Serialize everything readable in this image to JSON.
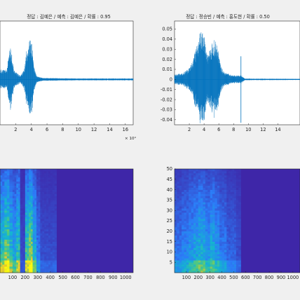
{
  "chart_data": [
    {
      "type": "line",
      "title": "정답 : 김예은 / 예측 : 김예은 / 확률 : 0.95",
      "xlim": [
        0,
        17
      ],
      "xticks": [
        2,
        4,
        6,
        8,
        10,
        12,
        14,
        16
      ],
      "xtick_labels": [
        "2",
        "4",
        "6",
        "8",
        "10",
        "12",
        "14",
        "16"
      ],
      "x_multiplier": "× 10⁴",
      "ylim": [
        -0.045,
        0.058
      ],
      "color": "#0072bd",
      "envelope": [
        {
          "x": 0.9,
          "a": 0.01
        },
        {
          "x": 1.2,
          "a": 0.03
        },
        {
          "x": 1.45,
          "a": 0.032
        },
        {
          "x": 1.75,
          "a": 0.01
        },
        {
          "x": 2.2,
          "a": 0.006
        },
        {
          "x": 2.6,
          "a": 0.004
        },
        {
          "x": 3.1,
          "a": 0.01
        },
        {
          "x": 3.4,
          "a": 0.03
        },
        {
          "x": 3.6,
          "a": 0.038
        },
        {
          "x": 3.85,
          "a": 0.04
        },
        {
          "x": 4.1,
          "a": 0.035
        },
        {
          "x": 4.35,
          "a": 0.012
        },
        {
          "x": 4.7,
          "a": 0.003
        },
        {
          "x": 5.5,
          "a": 0.0015
        },
        {
          "x": 8.0,
          "a": 0.0012
        },
        {
          "x": 10.0,
          "a": 0.001
        },
        {
          "x": 17.0,
          "a": 0.001
        }
      ]
    },
    {
      "type": "line",
      "title": "정답 : 정승빈 / 예측 : 홍도현 / 확률 : 0.50",
      "xlim": [
        0,
        17
      ],
      "xticks": [
        2,
        4,
        6,
        8,
        10,
        12,
        14
      ],
      "xtick_labels": [
        "2",
        "4",
        "6",
        "8",
        "10",
        "12",
        "14"
      ],
      "ylim": [
        -0.045,
        0.058
      ],
      "yticks": [
        -0.04,
        -0.03,
        -0.02,
        -0.01,
        0,
        0.01,
        0.02,
        0.03,
        0.04,
        0.05
      ],
      "ytick_labels": [
        "-0.04",
        "-0.03",
        "-0.02",
        "-0.01",
        "0",
        "0.01",
        "0.02",
        "0.03",
        "0.04",
        "0.05"
      ],
      "color": "#0072bd",
      "envelope": [
        {
          "x": 0.0,
          "a": 0.005
        },
        {
          "x": 1.0,
          "a": 0.006
        },
        {
          "x": 1.8,
          "a": 0.01
        },
        {
          "x": 2.5,
          "a": 0.02
        },
        {
          "x": 3.0,
          "a": 0.035
        },
        {
          "x": 3.4,
          "a": 0.045
        },
        {
          "x": 3.7,
          "a": 0.05
        },
        {
          "x": 4.0,
          "a": 0.045
        },
        {
          "x": 4.4,
          "a": 0.025
        },
        {
          "x": 4.8,
          "a": 0.03
        },
        {
          "x": 5.3,
          "a": 0.04
        },
        {
          "x": 5.8,
          "a": 0.035
        },
        {
          "x": 6.2,
          "a": 0.015
        },
        {
          "x": 6.6,
          "a": 0.008
        },
        {
          "x": 7.5,
          "a": 0.005
        },
        {
          "x": 8.5,
          "a": 0.004
        },
        {
          "x": 9.1,
          "a": 0.004
        },
        {
          "x": 9.5,
          "a": 0.0008
        },
        {
          "x": 17.0,
          "a": 0.0006
        }
      ],
      "spikes": [
        {
          "x": 9.0,
          "top": 0.023,
          "bottom": -0.043
        }
      ]
    },
    {
      "type": "heatmap",
      "xlim": [
        0,
        1060
      ],
      "xticks": [
        100,
        200,
        300,
        400,
        500,
        600,
        700,
        800,
        900,
        1000
      ],
      "xtick_labels": [
        "100",
        "200",
        "300",
        "400",
        "500",
        "600",
        "700",
        "800",
        "900",
        "1000"
      ],
      "ylim": [
        0,
        50
      ],
      "colormap": [
        "#3e26a8",
        "#2c7cf8",
        "#14b5d0",
        "#59cb76",
        "#e5c730",
        "#f9fb0e"
      ],
      "bands": [
        {
          "x0": 0,
          "x1": 35,
          "level": 0.5
        },
        {
          "x0": 35,
          "x1": 75,
          "level": 0.65
        },
        {
          "x0": 75,
          "x1": 100,
          "level": 0.45
        },
        {
          "x0": 100,
          "x1": 130,
          "level": 0.35
        },
        {
          "x0": 130,
          "x1": 160,
          "level": 0.5
        },
        {
          "x0": 160,
          "x1": 200,
          "level": 0.08
        },
        {
          "x0": 200,
          "x1": 230,
          "level": 0.55
        },
        {
          "x0": 230,
          "x1": 260,
          "level": 0.7
        },
        {
          "x0": 260,
          "x1": 290,
          "level": 0.4
        },
        {
          "x0": 290,
          "x1": 320,
          "level": 0.2
        },
        {
          "x0": 320,
          "x1": 450,
          "level": 0.1
        }
      ]
    },
    {
      "type": "heatmap",
      "xlim": [
        0,
        1060
      ],
      "xticks": [
        100,
        200,
        300,
        400,
        500,
        600,
        700,
        800,
        900,
        1000
      ],
      "xtick_labels": [
        "100",
        "200",
        "300",
        "400",
        "500",
        "600",
        "700",
        "800",
        "900",
        "1000"
      ],
      "ylim": [
        0,
        50
      ],
      "yticks": [
        5,
        10,
        15,
        20,
        25,
        30,
        35,
        40,
        45,
        50
      ],
      "ytick_labels": [
        "5",
        "10",
        "15",
        "20",
        "25",
        "30",
        "35",
        "40",
        "45",
        "50"
      ],
      "colormap": [
        "#3e26a8",
        "#2c7cf8",
        "#14b5d0",
        "#59cb76",
        "#e5c730",
        "#f9fb0e"
      ],
      "bands": [
        {
          "x0": 0,
          "x1": 60,
          "level": 0.2
        },
        {
          "x0": 60,
          "x1": 120,
          "level": 0.25
        },
        {
          "x0": 120,
          "x1": 160,
          "level": 0.3
        },
        {
          "x0": 160,
          "x1": 200,
          "level": 0.35
        },
        {
          "x0": 200,
          "x1": 260,
          "level": 0.4
        },
        {
          "x0": 260,
          "x1": 300,
          "level": 0.3
        },
        {
          "x0": 300,
          "x1": 340,
          "level": 0.38
        },
        {
          "x0": 340,
          "x1": 380,
          "level": 0.3
        },
        {
          "x0": 380,
          "x1": 440,
          "level": 0.22
        },
        {
          "x0": 440,
          "x1": 520,
          "level": 0.15
        },
        {
          "x0": 520,
          "x1": 560,
          "level": 0.1
        }
      ]
    }
  ]
}
